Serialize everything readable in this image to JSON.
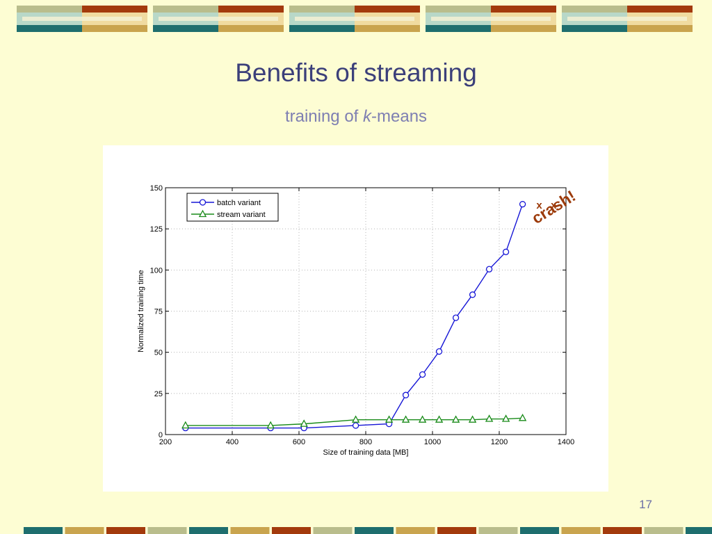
{
  "slide": {
    "title": "Benefits of streaming",
    "subtitle_prefix": "training of ",
    "subtitle_var": "k",
    "subtitle_suffix": "-means",
    "page_number": "17",
    "crash_text": "crash!",
    "crash_marks": [
      "x",
      "x"
    ]
  },
  "colors": {
    "background": "#fdfdd3",
    "title": "#3b3f7a",
    "subtitle": "#7e7fb2",
    "batch": "#1515d6",
    "stream": "#188a18",
    "crash": "#9c3a0a",
    "banner_teal": "#1e6e6e",
    "banner_gold": "#c9a44e",
    "banner_rust": "#a33a0c",
    "banner_sage": "#b9bd8c"
  },
  "chart_data": {
    "type": "line",
    "xlabel": "Size of training data [MB]",
    "ylabel": "Normalized training time",
    "xlim": [
      200,
      1400
    ],
    "ylim": [
      0,
      150
    ],
    "xticks": [
      200,
      400,
      600,
      800,
      1000,
      1200,
      1400
    ],
    "yticks": [
      0,
      25,
      50,
      75,
      100,
      125,
      150
    ],
    "grid": true,
    "legend_position": "top-left",
    "series": [
      {
        "name": "batch variant",
        "marker": "circle",
        "x": [
          260,
          515,
          615,
          770,
          870,
          920,
          970,
          1020,
          1070,
          1120,
          1170,
          1220,
          1270
        ],
        "y": [
          4,
          4,
          4,
          5.5,
          6.5,
          24,
          36.5,
          50.5,
          71,
          85,
          100.5,
          111,
          140
        ]
      },
      {
        "name": "stream variant",
        "marker": "triangle",
        "x": [
          260,
          515,
          615,
          770,
          870,
          920,
          970,
          1020,
          1070,
          1120,
          1170,
          1220,
          1270
        ],
        "y": [
          5.5,
          5.5,
          6.5,
          9,
          9,
          9,
          9,
          9,
          9,
          9,
          9.5,
          9.5,
          10
        ]
      }
    ]
  }
}
